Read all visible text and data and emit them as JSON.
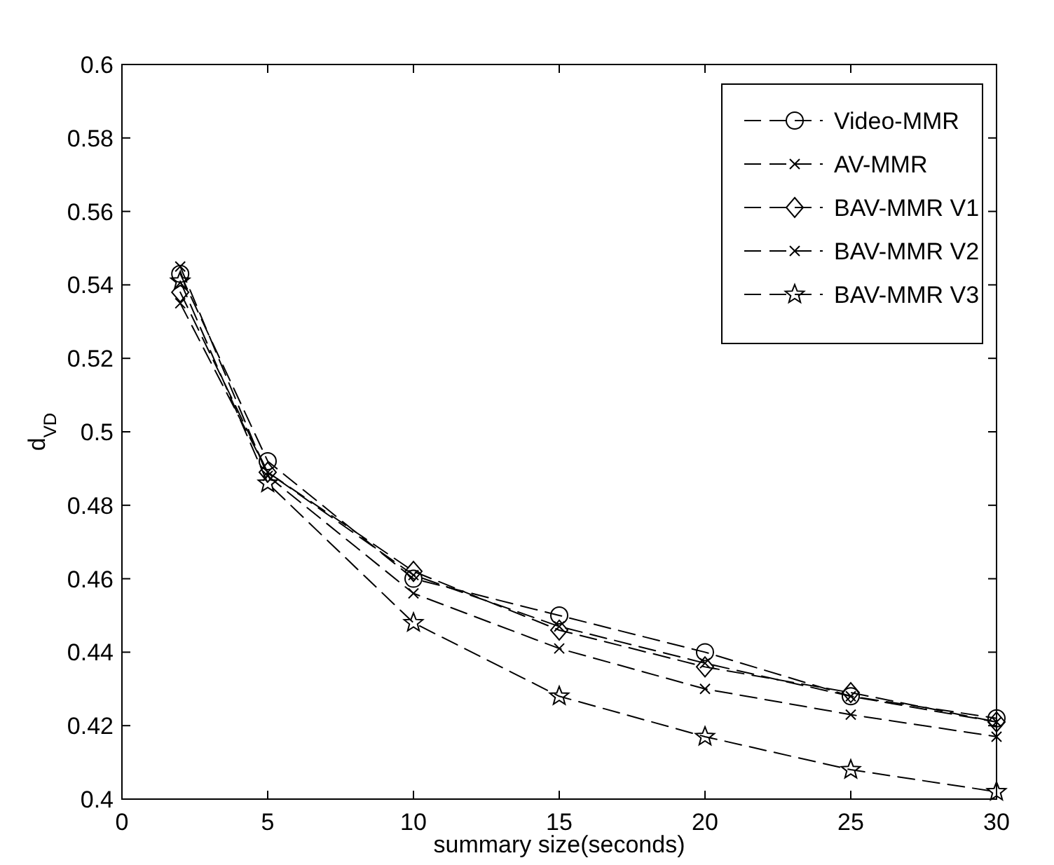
{
  "chart_data": {
    "type": "line",
    "xlabel": "summary size(seconds)",
    "ylabel": "d$_{VD}$",
    "x": [
      2,
      5,
      10,
      15,
      20,
      25,
      30
    ],
    "series": [
      {
        "name": "Video-MMR",
        "color": "#000000",
        "marker": "circle",
        "values": [
          0.543,
          0.492,
          0.46,
          0.45,
          0.44,
          0.428,
          0.422
        ]
      },
      {
        "name": "AV-MMR",
        "color": "#000000",
        "marker": "cross",
        "values": [
          0.535,
          0.489,
          0.461,
          0.447,
          0.437,
          0.428,
          0.421
        ]
      },
      {
        "name": "BAV-MMR V1",
        "color": "#000000",
        "marker": "diamond",
        "values": [
          0.538,
          0.489,
          0.462,
          0.446,
          0.436,
          0.429,
          0.421
        ]
      },
      {
        "name": "BAV-MMR V2",
        "color": "#000000",
        "marker": "cross",
        "values": [
          0.545,
          0.488,
          0.456,
          0.441,
          0.43,
          0.423,
          0.417
        ]
      },
      {
        "name": "BAV-MMR V3",
        "color": "#000000",
        "marker": "star",
        "values": [
          0.541,
          0.486,
          0.448,
          0.428,
          0.417,
          0.408,
          0.402
        ]
      }
    ],
    "xlim": [
      0,
      30
    ],
    "xticks": [
      0,
      5,
      10,
      15,
      20,
      25,
      30
    ],
    "ylim": [
      0.4,
      0.6
    ],
    "yticks": [
      {
        "value": 0.4,
        "label": "0.4"
      },
      {
        "value": 0.42,
        "label": "0.42"
      },
      {
        "value": 0.44,
        "label": "0.44"
      },
      {
        "value": 0.46,
        "label": "0.46"
      },
      {
        "value": 0.48,
        "label": "0.48"
      },
      {
        "value": 0.5,
        "label": "0.5"
      },
      {
        "value": 0.52,
        "label": "0.52"
      },
      {
        "value": 0.54,
        "label": "0.54"
      },
      {
        "value": 0.56,
        "label": "0.56"
      },
      {
        "value": 0.58,
        "label": "0.58"
      },
      {
        "value": 0.6,
        "label": "0.6"
      }
    ],
    "grid": false,
    "legend": "top right",
    "line_style": "dashed"
  }
}
